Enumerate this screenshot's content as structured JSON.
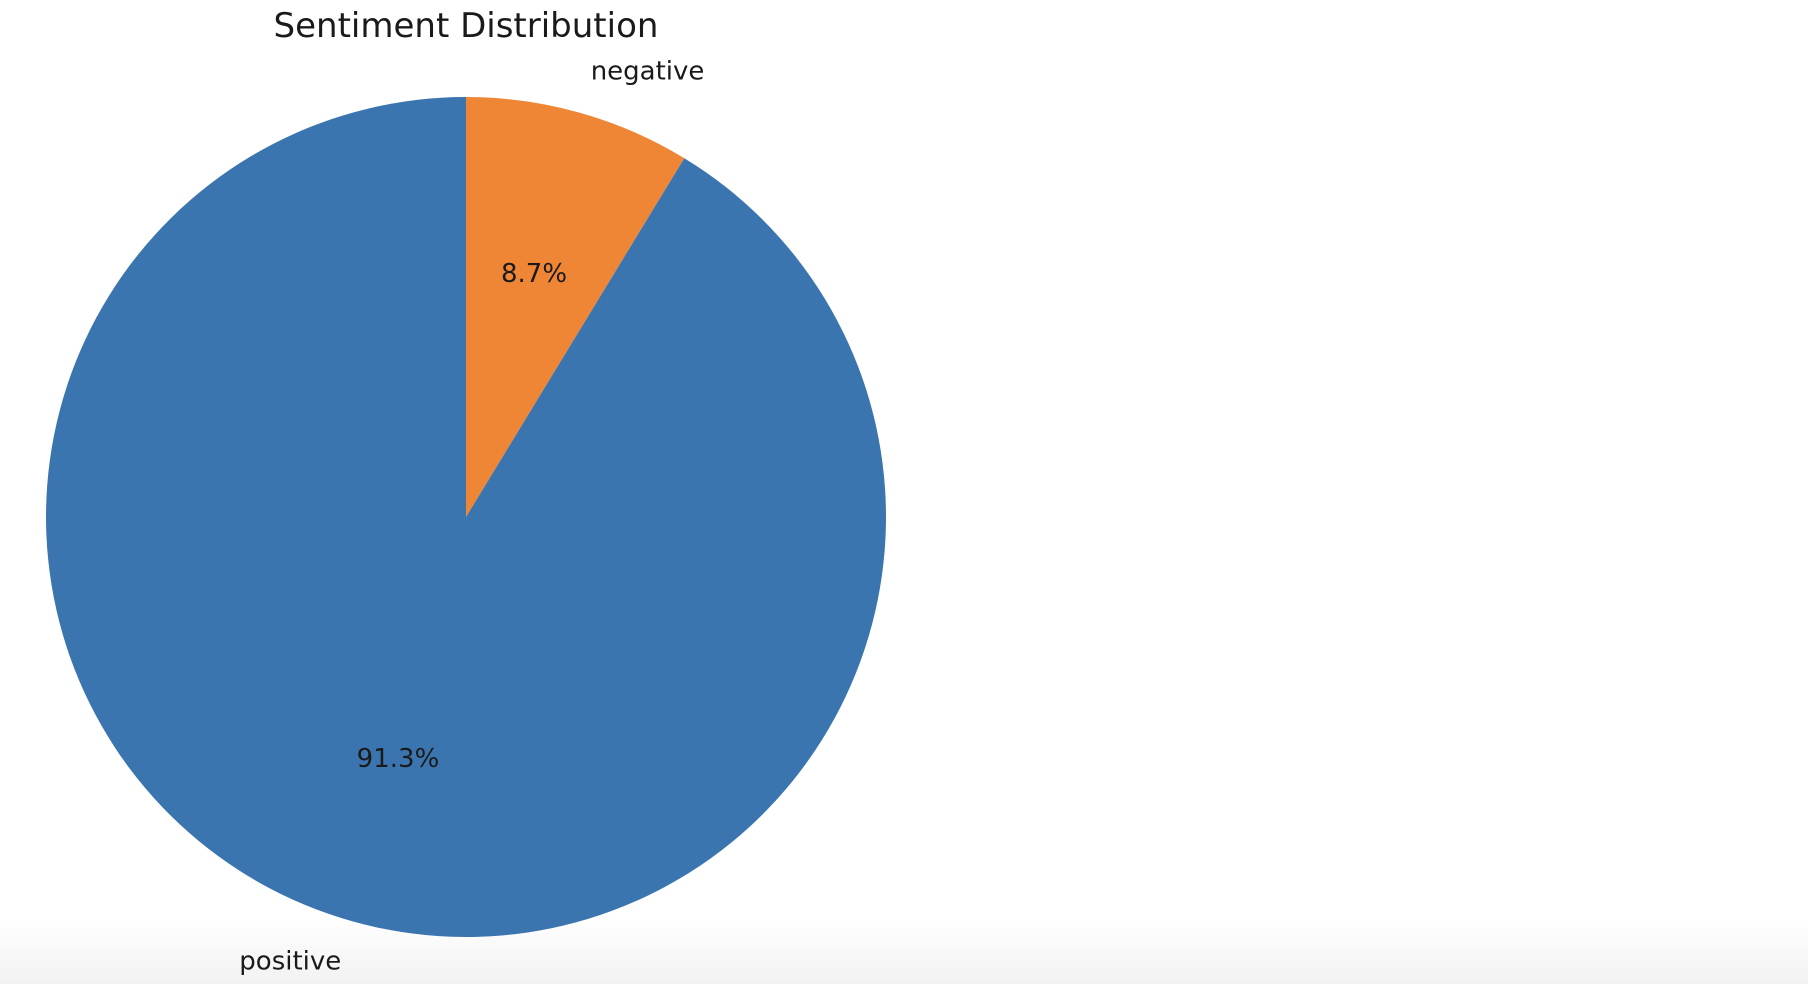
{
  "chart_data": {
    "type": "pie",
    "title": "Sentiment Distribution",
    "slices": [
      {
        "label": "negative",
        "value": 8.7,
        "pct_label": "8.7%",
        "color": "#ef8636"
      },
      {
        "label": "positive",
        "value": 91.3,
        "pct_label": "91.3%",
        "color": "#3b75af"
      }
    ],
    "start_angle": 90,
    "direction": "clockwise",
    "legend": "none"
  }
}
